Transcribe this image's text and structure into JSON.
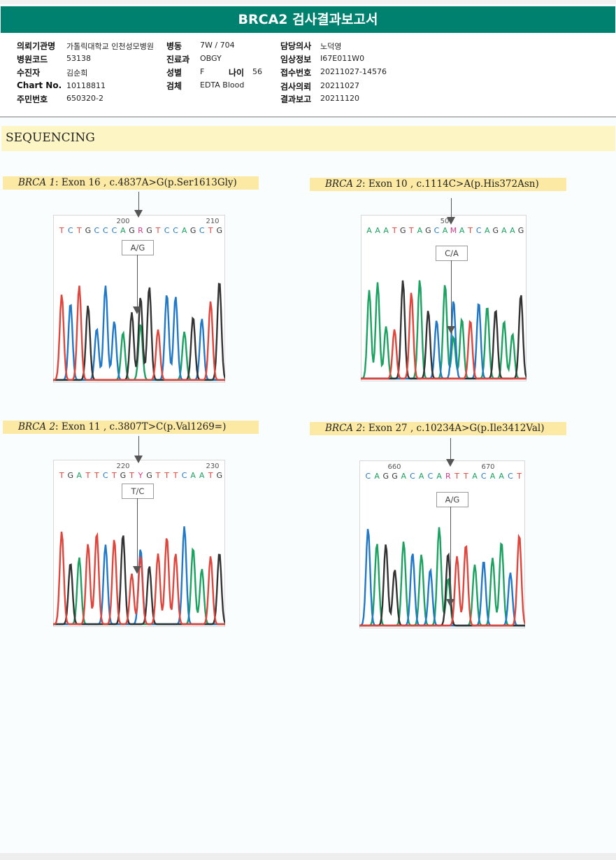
{
  "header": {
    "title": "BRCA2 검사결과보고서"
  },
  "info": {
    "hospital_label": "의뢰기관명",
    "hospital_value": "가톨릭대학교 인천성모병원",
    "ward_label": "병동",
    "ward_value": "7W / 704",
    "doctor_label": "담당의사",
    "doctor_value": "노덕영",
    "code_label": "병원코드",
    "code_value": "53138",
    "dept_label": "진료과",
    "dept_value": "OBGY",
    "clinical_label": "임상정보",
    "clinical_value": "I67E011W0",
    "patient_label": "수진자",
    "patient_value": "김순희",
    "sex_label": "성별",
    "sex_value": "F",
    "age_label": "나이",
    "age_value": "56",
    "accession_label": "접수번호",
    "accession_value": "20211027-14576",
    "chart_label": "Chart No.",
    "chart_value": "10118811",
    "specimen_label": "검체",
    "specimen_value": "EDTA Blood",
    "request_label": "검사의뢰",
    "request_value": "20211027",
    "id_label": "주민번호",
    "id_value": "650320-2",
    "report_label": "결과보고",
    "report_value": "20211120"
  },
  "section_title": "SEQUENCING",
  "variants": [
    {
      "gene": "BRCA 1",
      "detail": ": Exon 16 , c.4837A>G(p.Ser1613Gly)",
      "pos_left": "200",
      "pos_right": "210",
      "call": "A/G",
      "sequence": "TCTGCCCAGRGTCCAGCTG"
    },
    {
      "gene": "BRCA 2",
      "detail": ": Exon 10 , c.1114C>A(p.His372Asn)",
      "pos_left": "50",
      "pos_right": "",
      "call": "C/A",
      "sequence": "AAATGTAGCAMATCAGAAG"
    },
    {
      "gene": "BRCA 2",
      "detail": ": Exon 11 , c.3807T>C(p.Val1269=)",
      "pos_left": "220",
      "pos_right": "230",
      "call": "T/C",
      "sequence": "TGATTCTGTYGTTTCAATG"
    },
    {
      "gene": "BRCA 2",
      "detail": ": Exon 27 , c.10234A>G(p.Ile3412Val)",
      "pos_left": "660",
      "pos_right": "670",
      "call": "A/G",
      "sequence": "CAGGACACARTTACAACT"
    }
  ],
  "base_colors": {
    "A": "#1aa260",
    "C": "#1f78c8",
    "G": "#333333",
    "T": "#e0443a",
    "ambiguous": "#d03a8a"
  }
}
